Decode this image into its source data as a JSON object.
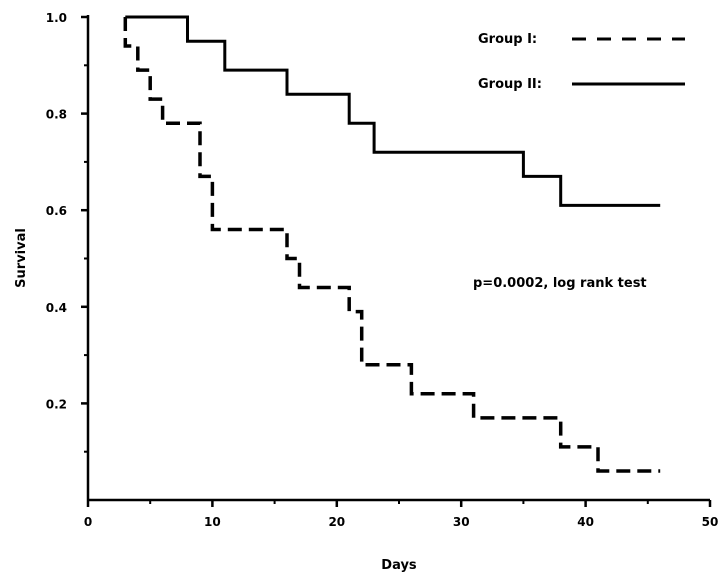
{
  "chart_data": {
    "type": "line",
    "subtype": "step",
    "title": "",
    "xlabel": "Days",
    "ylabel": "Survival",
    "xlim": [
      0,
      50
    ],
    "ylim": [
      0,
      1.0
    ],
    "x_ticks": [
      0,
      10,
      20,
      30,
      40,
      50
    ],
    "x_tick_labels": [
      "0",
      "10",
      "20",
      "30",
      "40",
      "50"
    ],
    "y_ticks": [
      0.2,
      0.4,
      0.6,
      0.8,
      1.0
    ],
    "y_tick_labels": [
      "0.2",
      "0.4",
      "0.6",
      "0.8",
      "1.0"
    ],
    "grid": false,
    "legend_position": "top-right",
    "series": [
      {
        "name": "Group I:",
        "line_style": "dashed",
        "color": "#000000",
        "points": [
          [
            3,
            1.0
          ],
          [
            3,
            0.94
          ],
          [
            4,
            0.94
          ],
          [
            4,
            0.89
          ],
          [
            5,
            0.89
          ],
          [
            5,
            0.83
          ],
          [
            6,
            0.83
          ],
          [
            6,
            0.78
          ],
          [
            9,
            0.78
          ],
          [
            9,
            0.67
          ],
          [
            10,
            0.67
          ],
          [
            10,
            0.56
          ],
          [
            16,
            0.56
          ],
          [
            16,
            0.5
          ],
          [
            17,
            0.5
          ],
          [
            17,
            0.44
          ],
          [
            21,
            0.44
          ],
          [
            21,
            0.39
          ],
          [
            22,
            0.39
          ],
          [
            22,
            0.28
          ],
          [
            26,
            0.28
          ],
          [
            26,
            0.22
          ],
          [
            31,
            0.22
          ],
          [
            31,
            0.17
          ],
          [
            38,
            0.17
          ],
          [
            38,
            0.11
          ],
          [
            41,
            0.11
          ],
          [
            41,
            0.06
          ],
          [
            46,
            0.06
          ]
        ]
      },
      {
        "name": "Group II:",
        "line_style": "solid",
        "color": "#000000",
        "points": [
          [
            3,
            1.0
          ],
          [
            8,
            1.0
          ],
          [
            8,
            0.95
          ],
          [
            11,
            0.95
          ],
          [
            11,
            0.89
          ],
          [
            16,
            0.89
          ],
          [
            16,
            0.84
          ],
          [
            21,
            0.84
          ],
          [
            21,
            0.78
          ],
          [
            23,
            0.78
          ],
          [
            23,
            0.72
          ],
          [
            35,
            0.72
          ],
          [
            35,
            0.67
          ],
          [
            38,
            0.67
          ],
          [
            38,
            0.61
          ],
          [
            46,
            0.61
          ]
        ]
      }
    ],
    "annotations": [
      {
        "text": "p=0.0002, log rank test"
      }
    ]
  }
}
